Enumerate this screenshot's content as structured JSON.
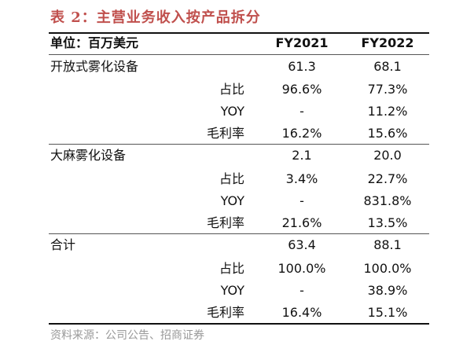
{
  "title": "表 2：主营业务收入按产品拆分",
  "header": {
    "unit": "单位：百万美元",
    "col1": "FY2021",
    "col2": "FY2022"
  },
  "groups": [
    {
      "name": "开放式雾化设备",
      "v1": "61.3",
      "v2": "68.1",
      "rows": [
        {
          "label": "占比",
          "v1": "96.6%",
          "v2": "77.3%"
        },
        {
          "label": "YOY",
          "v1": "-",
          "v2": "11.2%"
        },
        {
          "label": "毛利率",
          "v1": "16.2%",
          "v2": "15.6%"
        }
      ]
    },
    {
      "name": "大麻雾化设备",
      "v1": "2.1",
      "v2": "20.0",
      "rows": [
        {
          "label": "占比",
          "v1": "3.4%",
          "v2": "22.7%"
        },
        {
          "label": "YOY",
          "v1": "-",
          "v2": "831.8%"
        },
        {
          "label": "毛利率",
          "v1": "21.6%",
          "v2": "13.5%"
        }
      ]
    },
    {
      "name": "合计",
      "v1": "63.4",
      "v2": "88.1",
      "rows": [
        {
          "label": "占比",
          "v1": "100.0%",
          "v2": "100.0%"
        },
        {
          "label": "YOY",
          "v1": "-",
          "v2": "38.9%"
        },
        {
          "label": "毛利率",
          "v1": "16.4%",
          "v2": "15.1%"
        }
      ]
    }
  ],
  "source": "资料来源：公司公告、招商证券"
}
